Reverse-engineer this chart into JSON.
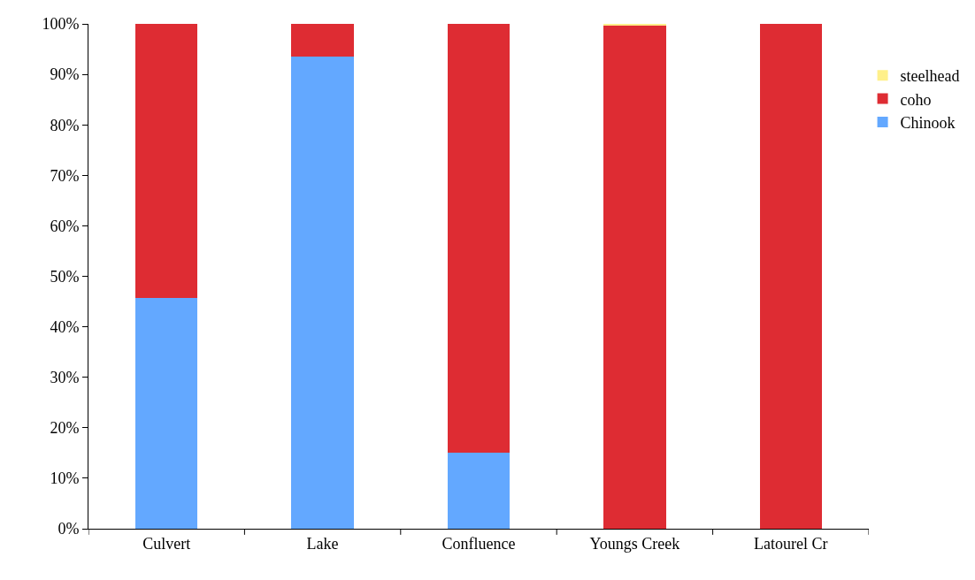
{
  "chart_data": {
    "type": "bar",
    "stacked": true,
    "categories": [
      "Culvert",
      "Lake",
      "Confluence",
      "Youngs Creek",
      "Latourel Cr"
    ],
    "series": [
      {
        "name": "Chinook",
        "color": "#63a8ff",
        "values": [
          45.7,
          93.5,
          15,
          0,
          0
        ]
      },
      {
        "name": "coho",
        "color": "#de2c33",
        "values": [
          54.3,
          6.5,
          85,
          99.7,
          100
        ]
      },
      {
        "name": "steelhead",
        "color": "#fff08a",
        "values": [
          0,
          0,
          0,
          0.3,
          0
        ]
      }
    ],
    "ylim": [
      0,
      100
    ],
    "yticks": [
      {
        "value": 0,
        "label": "0%"
      },
      {
        "value": 10,
        "label": "10%"
      },
      {
        "value": 20,
        "label": "20%"
      },
      {
        "value": 30,
        "label": "30%"
      },
      {
        "value": 40,
        "label": "40%"
      },
      {
        "value": 50,
        "label": "50%"
      },
      {
        "value": 60,
        "label": "60%"
      },
      {
        "value": 70,
        "label": "70%"
      },
      {
        "value": 80,
        "label": "80%"
      },
      {
        "value": 90,
        "label": "90%"
      },
      {
        "value": 100,
        "label": "100%"
      }
    ],
    "legend": "top right"
  }
}
